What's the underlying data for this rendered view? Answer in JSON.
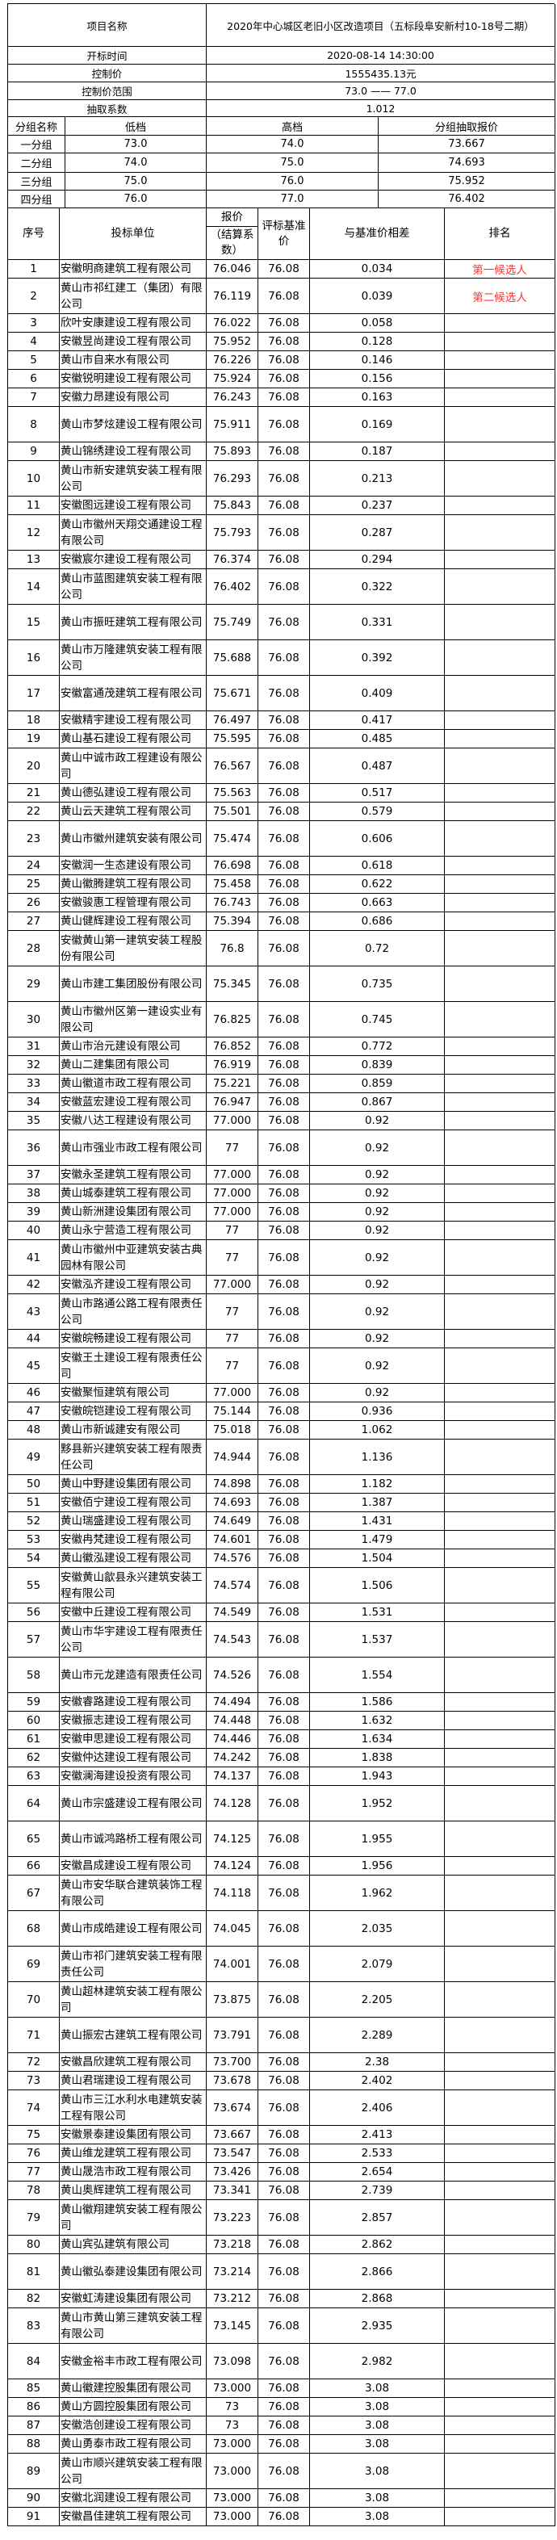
{
  "summary": {
    "project_label": "项目名称",
    "project_value": "2020年中心城区老旧小区改造项目（五标段阜安新村10-18号二期）",
    "open_time_label": "开标时间",
    "open_time_value": "2020-08-14 14:30:00",
    "control_price_label": "控制价",
    "control_price_value": "1555435.13元",
    "range_label": "控制价范围",
    "range_value": "73.0 —— 77.0",
    "coef_label": "抽取系数",
    "coef_value": "1.012"
  },
  "groups": {
    "headers": [
      "分组名称",
      "低档",
      "高档",
      "分组抽取报价"
    ],
    "rows": [
      [
        "一分组",
        "73.0",
        "74.0",
        "73.667"
      ],
      [
        "二分组",
        "74.0",
        "75.0",
        "74.693"
      ],
      [
        "三分组",
        "75.0",
        "76.0",
        "75.952"
      ],
      [
        "四分组",
        "76.0",
        "77.0",
        "76.402"
      ]
    ]
  },
  "table": {
    "headers": {
      "seq": "序号",
      "bidder": "投标单位",
      "price_top": "报价",
      "price_bottom": "（结算系数）",
      "base": "评标基准价",
      "diff": "与基准价相差",
      "rank": "排名"
    },
    "rank_color": "#ff3333",
    "rows": [
      [
        "1",
        "安徽明商建筑工程有限公司",
        "76.046",
        "76.08",
        "0.034",
        "第一候选人"
      ],
      [
        "2",
        "黄山市祁红建工（集团）有限公司",
        "76.119",
        "76.08",
        "0.039",
        "第二候选人"
      ],
      [
        "3",
        "欣叶安康建设工程有限公司",
        "76.022",
        "76.08",
        "0.058",
        ""
      ],
      [
        "4",
        "安徽昱尚建设工程有限公司",
        "75.952",
        "76.08",
        "0.128",
        ""
      ],
      [
        "5",
        "黄山市自来水有限公司",
        "76.226",
        "76.08",
        "0.146",
        ""
      ],
      [
        "6",
        "安徽锐明建设工程有限公司",
        "75.924",
        "76.08",
        "0.156",
        ""
      ],
      [
        "7",
        "安徽力昂建设有限公司",
        "76.243",
        "76.08",
        "0.163",
        ""
      ],
      [
        "8",
        "黄山市梦炫建设工程有限公司",
        "75.911",
        "76.08",
        "0.169",
        ""
      ],
      [
        "9",
        "黄山锦绣建设工程有限公司",
        "75.893",
        "76.08",
        "0.187",
        ""
      ],
      [
        "10",
        "黄山市新安建筑安装工程有限公司",
        "76.293",
        "76.08",
        "0.213",
        ""
      ],
      [
        "11",
        "安徽图远建设工程有限公司",
        "75.843",
        "76.08",
        "0.237",
        ""
      ],
      [
        "12",
        "黄山市徽州天翔交通建设工程有限公司",
        "75.793",
        "76.08",
        "0.287",
        ""
      ],
      [
        "13",
        "安徽宸尔建设工程有限公司",
        "76.374",
        "76.08",
        "0.294",
        ""
      ],
      [
        "14",
        "黄山市蓝图建筑安装工程有限公司",
        "76.402",
        "76.08",
        "0.322",
        ""
      ],
      [
        "15",
        "黄山市振旺建筑工程有限公司",
        "75.749",
        "76.08",
        "0.331",
        ""
      ],
      [
        "16",
        "黄山市万隆建筑安装工程有限公司",
        "75.688",
        "76.08",
        "0.392",
        ""
      ],
      [
        "17",
        "安徽富通茂建筑工程有限公司",
        "75.671",
        "76.08",
        "0.409",
        ""
      ],
      [
        "18",
        "安徽精宇建设工程有限公司",
        "76.497",
        "76.08",
        "0.417",
        ""
      ],
      [
        "19",
        "黄山基石建设工程有限公司",
        "75.595",
        "76.08",
        "0.485",
        ""
      ],
      [
        "20",
        "黄山中诚市政工程建设有限公司",
        "76.567",
        "76.08",
        "0.487",
        ""
      ],
      [
        "21",
        "黄山德弘建设工程有限公司",
        "75.563",
        "76.08",
        "0.517",
        ""
      ],
      [
        "22",
        "黄山云天建筑工程有限公司",
        "75.501",
        "76.08",
        "0.579",
        ""
      ],
      [
        "23",
        "黄山市徽州建筑安装有限公司",
        "75.474",
        "76.08",
        "0.606",
        ""
      ],
      [
        "24",
        "安徽润一生态建设有限公司",
        "76.698",
        "76.08",
        "0.618",
        ""
      ],
      [
        "25",
        "黄山徽腾建筑工程有限公司",
        "75.458",
        "76.08",
        "0.622",
        ""
      ],
      [
        "26",
        "安徽骏惠工程管理有限公司",
        "76.743",
        "76.08",
        "0.663",
        ""
      ],
      [
        "27",
        "黄山健辉建设工程有限公司",
        "75.394",
        "76.08",
        "0.686",
        ""
      ],
      [
        "28",
        "安徽黄山第一建筑安装工程股份有限公司",
        "76.8",
        "76.08",
        "0.72",
        ""
      ],
      [
        "29",
        "黄山市建工集团股份有限公司",
        "75.345",
        "76.08",
        "0.735",
        ""
      ],
      [
        "30",
        "黄山市徽州区第一建设实业有限公司",
        "76.825",
        "76.08",
        "0.745",
        ""
      ],
      [
        "31",
        "黄山市治元建设有限公司",
        "76.852",
        "76.08",
        "0.772",
        ""
      ],
      [
        "32",
        "黄山二建集团有限公司",
        "76.919",
        "76.08",
        "0.839",
        ""
      ],
      [
        "33",
        "黄山徽道市政工程有限公司",
        "75.221",
        "76.08",
        "0.859",
        ""
      ],
      [
        "34",
        "安徽蓝宏建设工程有限公司",
        "76.947",
        "76.08",
        "0.867",
        ""
      ],
      [
        "35",
        "安徽八达工程建设有限公司",
        "77.000",
        "76.08",
        "0.92",
        ""
      ],
      [
        "36",
        "黄山市强业市政工程有限公司",
        "77",
        "76.08",
        "0.92",
        ""
      ],
      [
        "37",
        "安徽永圣建筑工程有限公司",
        "77.000",
        "76.08",
        "0.92",
        ""
      ],
      [
        "38",
        "黄山城泰建筑工程有限公司",
        "77.000",
        "76.08",
        "0.92",
        ""
      ],
      [
        "39",
        "黄山新洲建设集团有限公司",
        "77.000",
        "76.08",
        "0.92",
        ""
      ],
      [
        "40",
        "黄山永宁营造工程有限公司",
        "77",
        "76.08",
        "0.92",
        ""
      ],
      [
        "41",
        "黄山市徽州中亚建筑安装古典园林有限公司",
        "77",
        "76.08",
        "0.92",
        ""
      ],
      [
        "42",
        "安徽泓齐建设工程有限公司",
        "77.000",
        "76.08",
        "0.92",
        ""
      ],
      [
        "43",
        "黄山市路通公路工程有限责任公司",
        "77",
        "76.08",
        "0.92",
        ""
      ],
      [
        "44",
        "安徽皖畅建设工程有限公司",
        "77",
        "76.08",
        "0.92",
        ""
      ],
      [
        "45",
        "安徽王土建设工程有限责任公司",
        "77",
        "76.08",
        "0.92",
        ""
      ],
      [
        "46",
        "安徽聚恒建筑有限公司",
        "77.000",
        "76.08",
        "0.92",
        ""
      ],
      [
        "47",
        "安徽皖铠建设工程有限公司",
        "75.144",
        "76.08",
        "0.936",
        ""
      ],
      [
        "48",
        "黄山市新诚建安有限公司",
        "75.018",
        "76.08",
        "1.062",
        ""
      ],
      [
        "49",
        "黟县新兴建筑安装工程有限责任公司",
        "74.944",
        "76.08",
        "1.136",
        ""
      ],
      [
        "50",
        "黄山中野建设集团有限公司",
        "74.898",
        "76.08",
        "1.182",
        ""
      ],
      [
        "51",
        "安徽佰宁建设工程有限公司",
        "74.693",
        "76.08",
        "1.387",
        ""
      ],
      [
        "52",
        "黄山瑞盛建设工程有限公司",
        "74.649",
        "76.08",
        "1.431",
        ""
      ],
      [
        "53",
        "安徽冉梵建设工程有限公司",
        "74.601",
        "76.08",
        "1.479",
        ""
      ],
      [
        "54",
        "黄山徽泓建设工程有限公司",
        "74.576",
        "76.08",
        "1.504",
        ""
      ],
      [
        "55",
        "安徽黄山歙县永兴建筑安装工程有限公司",
        "74.574",
        "76.08",
        "1.506",
        ""
      ],
      [
        "56",
        "安徽中丘建设工程有限公司",
        "74.549",
        "76.08",
        "1.531",
        ""
      ],
      [
        "57",
        "黄山市华宇建设工程有限责任公司",
        "74.543",
        "76.08",
        "1.537",
        ""
      ],
      [
        "58",
        "黄山市元龙建造有限责任公司",
        "74.526",
        "76.08",
        "1.554",
        ""
      ],
      [
        "59",
        "安徽睿路建设工程有限公司",
        "74.494",
        "76.08",
        "1.586",
        ""
      ],
      [
        "60",
        "安徽振志建设工程有限公司",
        "74.448",
        "76.08",
        "1.632",
        ""
      ],
      [
        "61",
        "安徽申思建设工程有限公司",
        "74.446",
        "76.08",
        "1.634",
        ""
      ],
      [
        "62",
        "安徽仲达建设工程有限公司",
        "74.242",
        "76.08",
        "1.838",
        ""
      ],
      [
        "63",
        "安徽澜海建设投资有限公司",
        "74.137",
        "76.08",
        "1.943",
        ""
      ],
      [
        "64",
        "黄山市宗盛建设工程有限公司",
        "74.128",
        "76.08",
        "1.952",
        ""
      ],
      [
        "65",
        "黄山市诚鸿路桥工程有限公司",
        "74.125",
        "76.08",
        "1.955",
        ""
      ],
      [
        "66",
        "安徽昌成建设工程有限公司",
        "74.124",
        "76.08",
        "1.956",
        ""
      ],
      [
        "67",
        "黄山市安华联合建筑装饰工程有限公司",
        "74.118",
        "76.08",
        "1.962",
        ""
      ],
      [
        "68",
        "黄山市成皓建设工程有限公司",
        "74.045",
        "76.08",
        "2.035",
        ""
      ],
      [
        "69",
        "黄山市祁门建筑安装工程有限责任公司",
        "74.001",
        "76.08",
        "2.079",
        ""
      ],
      [
        "70",
        "黄山超林建筑安装工程有限公司",
        "73.875",
        "76.08",
        "2.205",
        ""
      ],
      [
        "71",
        "黄山振宏古建筑工程有限公司",
        "73.791",
        "76.08",
        "2.289",
        ""
      ],
      [
        "72",
        "安徽昌欣建筑工程有限公司",
        "73.700",
        "76.08",
        "2.38",
        ""
      ],
      [
        "73",
        "黄山君瑞建设工程有限公司",
        "73.678",
        "76.08",
        "2.402",
        ""
      ],
      [
        "74",
        "黄山市三江水利水电建筑安装工程有限公司",
        "73.674",
        "76.08",
        "2.406",
        ""
      ],
      [
        "75",
        "安徽景泰建设集团有限公司",
        "73.667",
        "76.08",
        "2.413",
        ""
      ],
      [
        "76",
        "黄山维龙建筑工程有限公司",
        "73.547",
        "76.08",
        "2.533",
        ""
      ],
      [
        "77",
        "黄山晟浩市政工程有限公司",
        "73.426",
        "76.08",
        "2.654",
        ""
      ],
      [
        "78",
        "黄山奥辉建筑工程有限公司",
        "73.341",
        "76.08",
        "2.739",
        ""
      ],
      [
        "79",
        "黄山徽翔建筑安装工程有限公司",
        "73.223",
        "76.08",
        "2.857",
        ""
      ],
      [
        "80",
        "黄山宾弘建筑有限公司",
        "73.218",
        "76.08",
        "2.862",
        ""
      ],
      [
        "81",
        "黄山徽弘泰建设集团有限公司",
        "73.214",
        "76.08",
        "2.866",
        ""
      ],
      [
        "82",
        "安徽虹涛建设集团有限公司",
        "73.212",
        "76.08",
        "2.868",
        ""
      ],
      [
        "83",
        "黄山市黄山第三建筑安装工程有限公司",
        "73.145",
        "76.08",
        "2.935",
        ""
      ],
      [
        "84",
        "安徽金裕丰市政工程有限公司",
        "73.098",
        "76.08",
        "2.982",
        ""
      ],
      [
        "85",
        "黄山徽建控股集团有限公司",
        "73.000",
        "76.08",
        "3.08",
        ""
      ],
      [
        "86",
        "黄山方圆控股集团有限公司",
        "73",
        "76.08",
        "3.08",
        ""
      ],
      [
        "87",
        "安徽浩创建设工程有限公司",
        "73",
        "76.08",
        "3.08",
        ""
      ],
      [
        "88",
        "黄山勇泰市政工程有限公司",
        "73.000",
        "76.08",
        "3.08",
        ""
      ],
      [
        "89",
        "黄山市顺兴建筑安装工程有限公司",
        "73.000",
        "76.08",
        "3.08",
        ""
      ],
      [
        "90",
        "安徽北润建设工程有限公司",
        "73.000",
        "76.08",
        "3.08",
        ""
      ],
      [
        "91",
        "安徽昌佳建筑工程有限公司",
        "73.000",
        "76.08",
        "3.08",
        ""
      ]
    ]
  }
}
